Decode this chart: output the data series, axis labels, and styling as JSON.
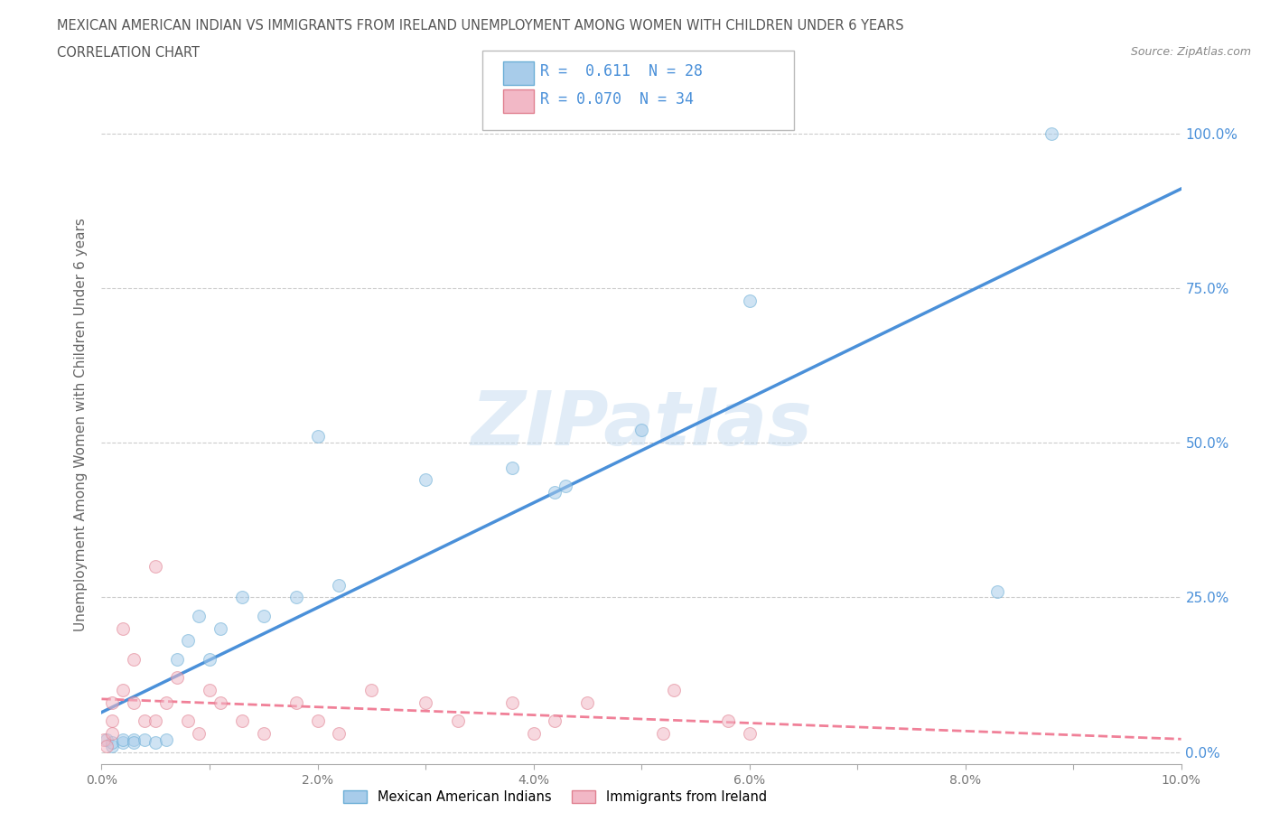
{
  "title_line1": "MEXICAN AMERICAN INDIAN VS IMMIGRANTS FROM IRELAND UNEMPLOYMENT AMONG WOMEN WITH CHILDREN UNDER 6 YEARS",
  "title_line2": "CORRELATION CHART",
  "source": "Source: ZipAtlas.com",
  "ylabel": "Unemployment Among Women with Children Under 6 years",
  "xlim": [
    0.0,
    0.1
  ],
  "ylim": [
    -0.02,
    1.08
  ],
  "yticks_right": [
    0.0,
    0.25,
    0.5,
    0.75,
    1.0
  ],
  "ytick_labels_right": [
    "0.0%",
    "25.0%",
    "50.0%",
    "75.0%",
    "100.0%"
  ],
  "xtick_labels": [
    "0.0%",
    "",
    "2.0%",
    "",
    "4.0%",
    "",
    "6.0%",
    "",
    "8.0%",
    "",
    "10.0%"
  ],
  "watermark": "ZIPatlas",
  "legend_R1": "0.611",
  "legend_N1": "28",
  "legend_R2": "0.070",
  "legend_N2": "34",
  "color_blue": "#A8CCEA",
  "color_pink": "#F2B8C6",
  "color_blue_edge": "#6BAED6",
  "color_pink_edge": "#E08090",
  "color_line_blue": "#4A90D9",
  "color_line_pink": "#F08098",
  "blue_x": [
    0.0005,
    0.001,
    0.001,
    0.002,
    0.002,
    0.003,
    0.003,
    0.004,
    0.005,
    0.006,
    0.007,
    0.008,
    0.009,
    0.01,
    0.011,
    0.013,
    0.015,
    0.018,
    0.02,
    0.022,
    0.03,
    0.038,
    0.042,
    0.043,
    0.05,
    0.06,
    0.083,
    0.088
  ],
  "blue_y": [
    0.02,
    0.01,
    0.015,
    0.015,
    0.02,
    0.02,
    0.015,
    0.02,
    0.015,
    0.02,
    0.15,
    0.18,
    0.22,
    0.15,
    0.2,
    0.25,
    0.22,
    0.25,
    0.51,
    0.27,
    0.44,
    0.46,
    0.42,
    0.43,
    0.52,
    0.73,
    0.26,
    1.0
  ],
  "pink_x": [
    0.0002,
    0.0005,
    0.001,
    0.001,
    0.001,
    0.002,
    0.002,
    0.003,
    0.003,
    0.004,
    0.005,
    0.005,
    0.006,
    0.007,
    0.008,
    0.009,
    0.01,
    0.011,
    0.013,
    0.015,
    0.018,
    0.02,
    0.022,
    0.025,
    0.03,
    0.033,
    0.038,
    0.04,
    0.042,
    0.045,
    0.052,
    0.053,
    0.058,
    0.06
  ],
  "pink_y": [
    0.02,
    0.01,
    0.05,
    0.08,
    0.03,
    0.1,
    0.2,
    0.08,
    0.15,
    0.05,
    0.3,
    0.05,
    0.08,
    0.12,
    0.05,
    0.03,
    0.1,
    0.08,
    0.05,
    0.03,
    0.08,
    0.05,
    0.03,
    0.1,
    0.08,
    0.05,
    0.08,
    0.03,
    0.05,
    0.08,
    0.03,
    0.1,
    0.05,
    0.03
  ],
  "bg_color": "#FFFFFF",
  "grid_color": "#CCCCCC",
  "dot_size": 100,
  "dot_alpha": 0.55
}
